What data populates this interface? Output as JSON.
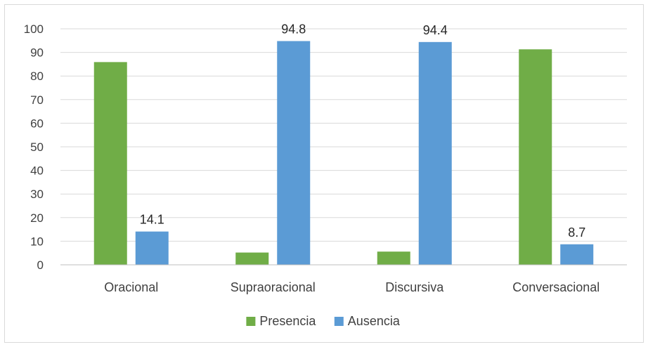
{
  "chart_data": {
    "type": "bar",
    "categories": [
      "Oracional",
      "Supraoracional",
      "Discursiva",
      "Conversacional"
    ],
    "series": [
      {
        "name": "Presencia",
        "values": [
          85.9,
          5.2,
          5.6,
          91.3
        ],
        "color": "#70ad47",
        "labels": [
          null,
          null,
          null,
          null
        ]
      },
      {
        "name": "Ausencia",
        "values": [
          14.1,
          94.8,
          94.4,
          8.7
        ],
        "color": "#5b9bd5",
        "labels": [
          "14.1",
          "94.8",
          "94.4",
          "8.7"
        ]
      }
    ],
    "title": "",
    "xlabel": "",
    "ylabel": "",
    "ylim": [
      0,
      100
    ],
    "yticks": [
      "0",
      "10",
      "20",
      "30",
      "40",
      "50",
      "60",
      "70",
      "80",
      "90",
      "100"
    ],
    "grid": true,
    "legend_position": "bottom"
  }
}
